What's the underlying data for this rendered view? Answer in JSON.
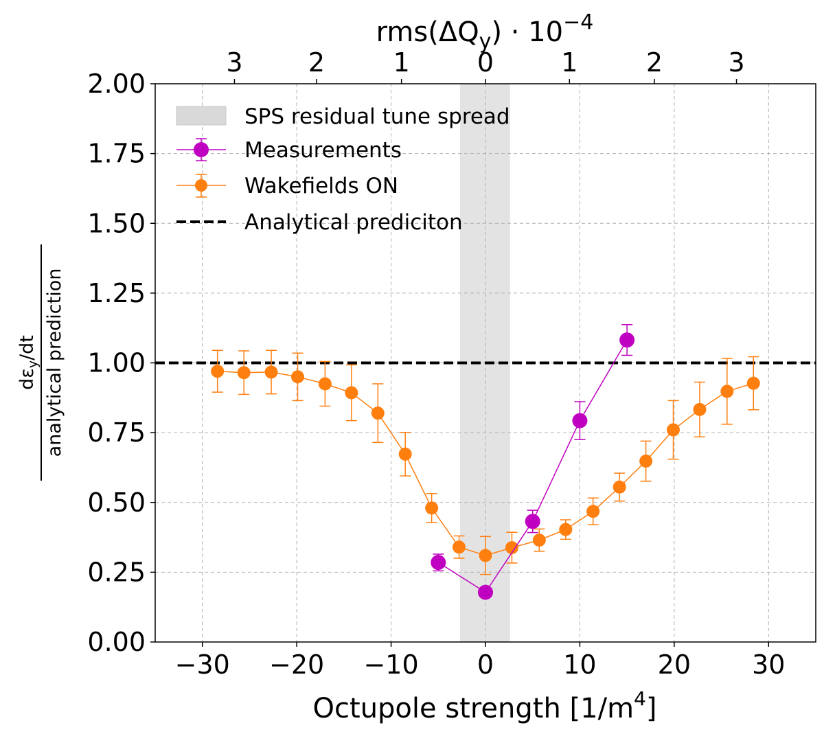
{
  "chart_data": {
    "type": "scatter",
    "title": "",
    "xlabel": "Octupole strength [1/m",
    "xlabel_sup": "4",
    "xlabel_end": "]",
    "ylabel_numerator": "dε",
    "ylabel_numerator_sub": "y",
    "ylabel_numerator_end": "/dt",
    "ylabel_denominator": "analytical prediction",
    "top_label_prefix": "rms(ΔQ",
    "top_label_sub": "y",
    "top_label_mid": ") · 10",
    "top_label_sup": "−4",
    "xlim": [
      -35,
      35
    ],
    "ylim": [
      0.0,
      2.0
    ],
    "grid": true,
    "legend_position": "upper-left",
    "x_ticks": [
      -30,
      -20,
      -10,
      0,
      10,
      20,
      30
    ],
    "x_tick_labels": [
      "−30",
      "−20",
      "−10",
      "0",
      "10",
      "20",
      "30"
    ],
    "y_ticks": [
      0.0,
      0.25,
      0.5,
      0.75,
      1.0,
      1.25,
      1.5,
      1.75,
      2.0
    ],
    "y_tick_labels": [
      "0.00",
      "0.25",
      "0.50",
      "0.75",
      "1.00",
      "1.25",
      "1.50",
      "1.75",
      "2.00"
    ],
    "top_ticks": [
      -26.6,
      -17.9,
      -8.9,
      0,
      8.9,
      17.9,
      26.6
    ],
    "top_tick_labels": [
      "3",
      "2",
      "1",
      "0",
      "1",
      "2",
      "3"
    ],
    "shaded_band": {
      "name": "SPS residual tune spread",
      "x_range": [
        -2.7,
        2.6
      ],
      "color": "#d9d9d9"
    },
    "reference_line": {
      "name": "Analytical prediciton",
      "y": 1.0,
      "color": "#000000"
    },
    "series": [
      {
        "name": "Wakefields ON",
        "color": "#ff7f0e",
        "x": [
          -28.4,
          -25.6,
          -22.7,
          -19.9,
          -17.0,
          -14.2,
          -11.4,
          -8.5,
          -5.7,
          -2.8,
          0.0,
          2.8,
          5.7,
          8.5,
          11.4,
          14.2,
          17.0,
          19.9,
          22.7,
          25.6,
          28.4
        ],
        "y": [
          0.97,
          0.965,
          0.967,
          0.95,
          0.925,
          0.893,
          0.82,
          0.673,
          0.48,
          0.34,
          0.31,
          0.338,
          0.365,
          0.403,
          0.468,
          0.555,
          0.648,
          0.76,
          0.833,
          0.898,
          0.927
        ],
        "yerr": [
          0.075,
          0.078,
          0.078,
          0.085,
          0.08,
          0.1,
          0.105,
          0.078,
          0.052,
          0.04,
          0.068,
          0.055,
          0.04,
          0.035,
          0.048,
          0.05,
          0.072,
          0.105,
          0.098,
          0.118,
          0.095
        ]
      },
      {
        "name": "Measurements",
        "color": "#c000c0",
        "x": [
          -5.0,
          0.0,
          5.0,
          10.0,
          15.0
        ],
        "y": [
          0.285,
          0.178,
          0.432,
          0.793,
          1.082
        ],
        "yerr": [
          0.03,
          0.015,
          0.04,
          0.068,
          0.055
        ]
      }
    ]
  }
}
